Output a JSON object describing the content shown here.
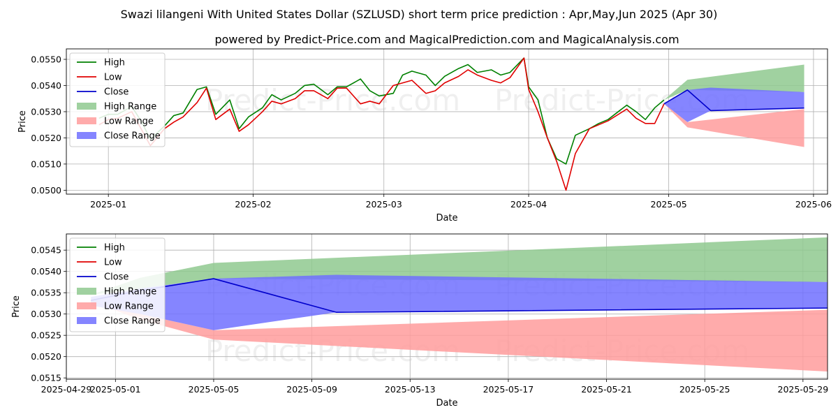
{
  "title": "Swazi lilangeni With United States Dollar (SZLUSD) short term price prediction : Apr,May,Jun 2025 (Apr 30)",
  "subtitle": "powered by Predict-Price.com and MagicalPrediction.com and MagicalAnalysis.com",
  "watermark": "Predict-Price.com",
  "colors": {
    "high": "#008000",
    "low": "#e00000",
    "close": "#0000cc",
    "high_range": "#8fc98f",
    "low_range": "#ff9c9c",
    "close_range": "#7070ff"
  },
  "chart_data": [
    {
      "type": "line",
      "xlabel": "Date",
      "ylabel": "Price",
      "grid": true,
      "legend_position": "upper-left",
      "legend": [
        "High",
        "Low",
        "Close",
        "High Range",
        "Low Range",
        "Close Range"
      ],
      "x_ticks": [
        "2025-01",
        "2025-02",
        "2025-03",
        "2025-04",
        "2025-05",
        "2025-06"
      ],
      "y_ticks": [
        "0.0500",
        "0.0510",
        "0.0520",
        "0.0530",
        "0.0540",
        "0.0550"
      ],
      "xlim": [
        "2024-12-23",
        "2025-06-04"
      ],
      "ylim": [
        0.04985,
        0.0554
      ],
      "series": [
        {
          "name": "High",
          "x": [
            "2024-12-30",
            "2025-01-01",
            "2025-01-03",
            "2025-01-06",
            "2025-01-08",
            "2025-01-10",
            "2025-01-13",
            "2025-01-15",
            "2025-01-17",
            "2025-01-20",
            "2025-01-22",
            "2025-01-24",
            "2025-01-27",
            "2025-01-29",
            "2025-01-31",
            "2025-02-03",
            "2025-02-05",
            "2025-02-07",
            "2025-02-10",
            "2025-02-12",
            "2025-02-14",
            "2025-02-17",
            "2025-02-19",
            "2025-02-21",
            "2025-02-24",
            "2025-02-26",
            "2025-02-28",
            "2025-03-03",
            "2025-03-05",
            "2025-03-07",
            "2025-03-10",
            "2025-03-12",
            "2025-03-14",
            "2025-03-17",
            "2025-03-19",
            "2025-03-21",
            "2025-03-24",
            "2025-03-26",
            "2025-03-28",
            "2025-03-31",
            "2025-04-01",
            "2025-04-03",
            "2025-04-05",
            "2025-04-07",
            "2025-04-09",
            "2025-04-11",
            "2025-04-14",
            "2025-04-16",
            "2025-04-18",
            "2025-04-22",
            "2025-04-24",
            "2025-04-26",
            "2025-04-28",
            "2025-04-30"
          ],
          "values": [
            0.05275,
            0.0529,
            0.0529,
            0.0532,
            0.05265,
            0.05195,
            0.05245,
            0.05285,
            0.05295,
            0.05385,
            0.05395,
            0.0529,
            0.05345,
            0.05235,
            0.0528,
            0.05315,
            0.05365,
            0.05345,
            0.0537,
            0.054,
            0.05405,
            0.05365,
            0.05395,
            0.05395,
            0.05425,
            0.0538,
            0.0536,
            0.0537,
            0.0544,
            0.05455,
            0.0544,
            0.054,
            0.05435,
            0.05465,
            0.0548,
            0.0545,
            0.0546,
            0.0544,
            0.0545,
            0.05505,
            0.05395,
            0.05345,
            0.052,
            0.0512,
            0.051,
            0.0521,
            0.05235,
            0.05255,
            0.0527,
            0.05325,
            0.053,
            0.0527,
            0.05315,
            0.05345
          ]
        },
        {
          "name": "Low",
          "x": [
            "2024-12-30",
            "2025-01-01",
            "2025-01-03",
            "2025-01-06",
            "2025-01-08",
            "2025-01-10",
            "2025-01-13",
            "2025-01-15",
            "2025-01-17",
            "2025-01-20",
            "2025-01-22",
            "2025-01-24",
            "2025-01-27",
            "2025-01-29",
            "2025-01-31",
            "2025-02-03",
            "2025-02-05",
            "2025-02-07",
            "2025-02-10",
            "2025-02-12",
            "2025-02-14",
            "2025-02-17",
            "2025-02-19",
            "2025-02-21",
            "2025-02-24",
            "2025-02-26",
            "2025-02-28",
            "2025-03-03",
            "2025-03-05",
            "2025-03-07",
            "2025-03-10",
            "2025-03-12",
            "2025-03-14",
            "2025-03-17",
            "2025-03-19",
            "2025-03-21",
            "2025-03-24",
            "2025-03-26",
            "2025-03-28",
            "2025-03-31",
            "2025-04-01",
            "2025-04-03",
            "2025-04-05",
            "2025-04-07",
            "2025-04-09",
            "2025-04-11",
            "2025-04-14",
            "2025-04-16",
            "2025-04-18",
            "2025-04-22",
            "2025-04-24",
            "2025-04-26",
            "2025-04-28",
            "2025-04-30"
          ],
          "values": [
            0.0525,
            0.0527,
            0.05275,
            0.053,
            0.05235,
            0.0517,
            0.05235,
            0.0526,
            0.0528,
            0.05335,
            0.0539,
            0.0527,
            0.0531,
            0.05225,
            0.0525,
            0.053,
            0.0534,
            0.0533,
            0.0535,
            0.0538,
            0.0538,
            0.0535,
            0.0539,
            0.0539,
            0.0533,
            0.0534,
            0.0533,
            0.054,
            0.0541,
            0.0542,
            0.0537,
            0.0538,
            0.0541,
            0.05435,
            0.0546,
            0.0544,
            0.0542,
            0.0541,
            0.0543,
            0.05505,
            0.05385,
            0.053,
            0.052,
            0.0511,
            0.05,
            0.0514,
            0.05235,
            0.0525,
            0.05265,
            0.0531,
            0.05275,
            0.05255,
            0.05255,
            0.0533
          ]
        },
        {
          "name": "Close",
          "x": [
            "2025-04-30",
            "2025-05-05",
            "2025-05-10",
            "2025-05-30"
          ],
          "values": [
            0.0533,
            0.05383,
            0.05304,
            0.05314
          ]
        },
        {
          "name": "High Range",
          "type": "area",
          "x": [
            "2025-04-30",
            "2025-05-05",
            "2025-05-30"
          ],
          "upper": [
            0.05345,
            0.05422,
            0.0548
          ],
          "lower": [
            0.05345,
            0.05383,
            0.05375
          ]
        },
        {
          "name": "Low Range",
          "type": "area",
          "x": [
            "2025-04-30",
            "2025-05-05",
            "2025-05-30"
          ],
          "upper": [
            0.0533,
            0.0526,
            0.0531
          ],
          "lower": [
            0.0533,
            0.0524,
            0.05165
          ]
        },
        {
          "name": "Close Range",
          "type": "area",
          "x": [
            "2025-04-30",
            "2025-05-05",
            "2025-05-10",
            "2025-05-30"
          ],
          "upper": [
            0.0533,
            0.05383,
            0.05392,
            0.05375
          ],
          "lower": [
            0.0533,
            0.0526,
            0.05304,
            0.05314
          ]
        }
      ]
    },
    {
      "type": "line",
      "xlabel": "Date",
      "ylabel": "Price",
      "grid": true,
      "legend_position": "upper-left",
      "legend": [
        "High",
        "Low",
        "Close",
        "High Range",
        "Low Range",
        "Close Range"
      ],
      "x_ticks": [
        "2025-04-29",
        "2025-05-01",
        "2025-05-05",
        "2025-05-09",
        "2025-05-13",
        "2025-05-17",
        "2025-05-21",
        "2025-05-25",
        "2025-05-29"
      ],
      "y_ticks": [
        "0.0515",
        "0.0520",
        "0.0525",
        "0.0530",
        "0.0535",
        "0.0540",
        "0.0545"
      ],
      "xlim": [
        "2025-04-29",
        "2025-05-30"
      ],
      "ylim": [
        0.05147,
        0.05488
      ],
      "series": [
        {
          "name": "Close",
          "x": [
            "2025-04-30",
            "2025-05-02",
            "2025-05-05",
            "2025-05-10",
            "2025-05-30"
          ],
          "values": [
            0.05332,
            0.05355,
            0.05383,
            0.05304,
            0.05314
          ]
        },
        {
          "name": "High Range",
          "type": "area",
          "x": [
            "2025-04-30",
            "2025-05-02",
            "2025-05-05",
            "2025-05-30"
          ],
          "upper": [
            0.05345,
            0.05385,
            0.0542,
            0.0548
          ],
          "lower": [
            0.05345,
            0.0536,
            0.05383,
            0.05375
          ]
        },
        {
          "name": "Low Range",
          "type": "area",
          "x": [
            "2025-04-30",
            "2025-05-02",
            "2025-05-05",
            "2025-05-30"
          ],
          "upper": [
            0.0533,
            0.053,
            0.05262,
            0.0531
          ],
          "lower": [
            0.0533,
            0.05287,
            0.0524,
            0.05165
          ]
        },
        {
          "name": "Close Range",
          "type": "area",
          "x": [
            "2025-04-30",
            "2025-05-02",
            "2025-05-05",
            "2025-05-10",
            "2025-05-30"
          ],
          "upper": [
            0.0534,
            0.0536,
            0.05383,
            0.05392,
            0.05375
          ],
          "lower": [
            0.0532,
            0.053,
            0.05262,
            0.05304,
            0.05314
          ]
        }
      ]
    }
  ]
}
